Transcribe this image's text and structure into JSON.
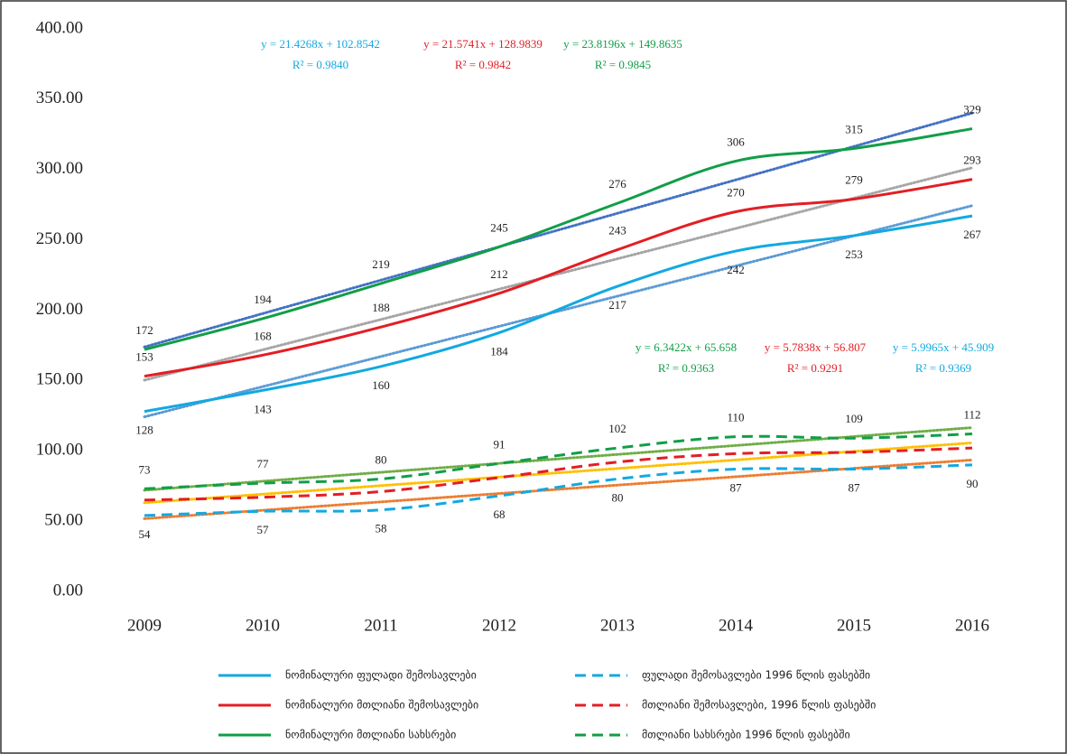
{
  "chart_data": {
    "type": "line",
    "categories": [
      "2009",
      "2010",
      "2011",
      "2012",
      "2013",
      "2014",
      "2015",
      "2016"
    ],
    "ylim": [
      0,
      400
    ],
    "yticks": [
      {
        "value": 0,
        "label": "0.00"
      },
      {
        "value": 50,
        "label": "50.00"
      },
      {
        "value": 100,
        "label": "100.00"
      },
      {
        "value": 150,
        "label": "150.00"
      },
      {
        "value": 200,
        "label": "200.00"
      },
      {
        "value": 250,
        "label": "250.00"
      },
      {
        "value": 300,
        "label": "300.00"
      },
      {
        "value": 350,
        "label": "350.00"
      },
      {
        "value": 400,
        "label": "400.00"
      }
    ],
    "grid": false,
    "legend": "bottom",
    "series": [
      {
        "name": "ნომინალური ფულადი შემოსავლები",
        "color": "#12a9e1",
        "dash": false,
        "labels": "below",
        "trend_color": "#5b9bd5",
        "values": [
          128,
          143,
          160,
          184,
          217,
          242,
          253,
          267
        ],
        "equation": "y = 21.4268x + 102.8542",
        "r2": "R² = 0.9840"
      },
      {
        "name": "ნომინალური მთლიანი შემოსავლები",
        "color": "#e31e24",
        "dash": false,
        "labels": "above",
        "trend_color": "#a5a5a5",
        "values": [
          153,
          168,
          188,
          212,
          243,
          270,
          279,
          293
        ],
        "equation": "y = 21.5741x + 128.9839",
        "r2": "R² = 0.9842"
      },
      {
        "name": "ნომინალური მთლიანი სახსრები",
        "color": "#119e48",
        "dash": false,
        "labels": "above",
        "trend_color": "#4472c4",
        "values": [
          172,
          194,
          219,
          245,
          276,
          306,
          315,
          329
        ],
        "equation": "y = 23.8196x + 149.8635",
        "r2": "R² = 0.9845"
      },
      {
        "name": "ფულადი შემოსავლები 1996 წლის ფასებში",
        "color": "#12a9e1",
        "dash": true,
        "labels": "below",
        "trend_color": "#ed7d31",
        "values": [
          54,
          57,
          58,
          68,
          80,
          87,
          87,
          90
        ],
        "equation": "y = 5.9965x + 45.909",
        "r2": "R² = 0.9369"
      },
      {
        "name": "მთლიანი შემოსავლები, 1996 წლის ფასებში",
        "color": "#e31e24",
        "dash": true,
        "labels": "none",
        "trend_color": "#ffc000",
        "values": [
          65,
          67,
          71,
          81,
          92,
          98,
          99,
          102
        ],
        "equation": "y = 5.7838x + 56.807",
        "r2": "R² = 0.9291"
      },
      {
        "name": "მთლიანი სახსრები 1996 წლის ფასებში",
        "color": "#119e48",
        "dash": true,
        "labels": "above",
        "trend_color": "#70ad47",
        "values": [
          73,
          77,
          80,
          91,
          102,
          110,
          109,
          112
        ],
        "equation": "y = 6.3422x + 65.658",
        "r2": "R² = 0.9363"
      }
    ]
  }
}
